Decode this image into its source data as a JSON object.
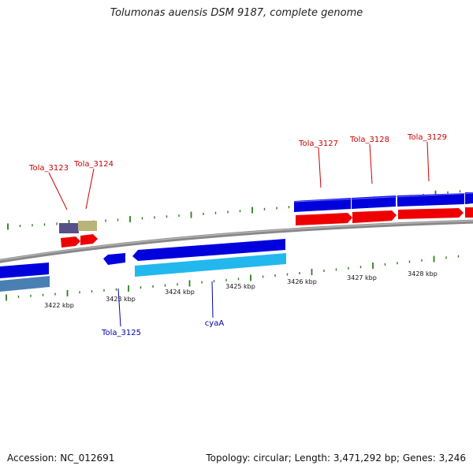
{
  "title": "Tolumonas auensis DSM 9187, complete genome",
  "footer": {
    "accession": "Accession: NC_012691",
    "summary": "Topology: circular; Length: 3,471,292 bp; Genes: 3,246"
  },
  "colors": {
    "forward_gene": "#0000dd",
    "forward_cds": "#ee0000",
    "reverse_gene": "#0000dd",
    "reverse_cds": "#22b8ee",
    "reverse_cds_edge": "#4a7fb4",
    "misc_purple": "#55508a",
    "misc_khaki": "#b8b47a",
    "label_forward": "#cc0000",
    "label_reverse": "#0000aa",
    "tick": "#2e7d1e",
    "backbone": "#888888"
  },
  "scale": {
    "unit": "kbp",
    "labels": [
      "3422 kbp",
      "3423 kbp",
      "3424 kbp",
      "3425 kbp",
      "3426 kbp",
      "3427 kbp",
      "3428 kbp"
    ]
  },
  "features": {
    "forward": [
      {
        "name": "Tola_3123"
      },
      {
        "name": "Tola_3124"
      },
      {
        "name": "Tola_3127"
      },
      {
        "name": "Tola_3128"
      },
      {
        "name": "Tola_3129"
      }
    ],
    "reverse": [
      {
        "name": "Tola_3125"
      },
      {
        "name": "cyaA"
      }
    ]
  }
}
